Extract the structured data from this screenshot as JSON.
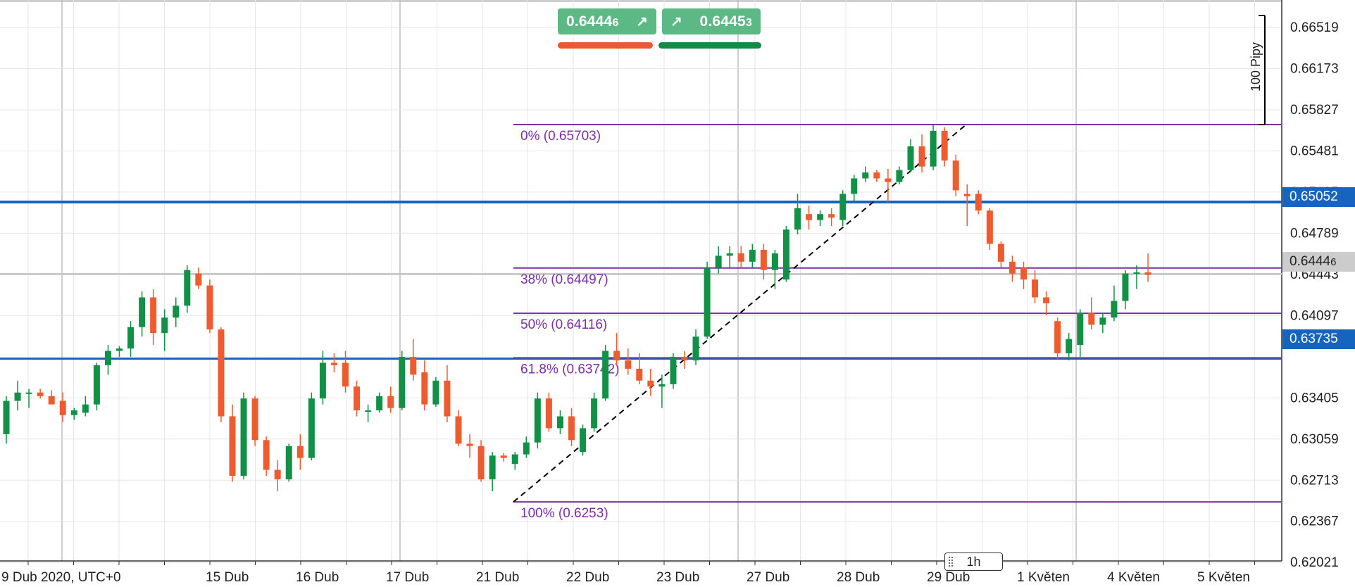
{
  "chart_data": {
    "type": "candlestick",
    "instrument_timeframe": "1h",
    "date_axis_start": "9 Dub 2020, UTC+0",
    "x_tick_labels": [
      "9 Dub 2020, UTC+0",
      "15 Dub",
      "16 Dub",
      "17 Dub",
      "21 Dub",
      "22 Dub",
      "23 Dub",
      "27 Dub",
      "28 Dub",
      "29 Dub",
      "1 Květen",
      "4 Květen",
      "5 Květen"
    ],
    "y_tick_labels": [
      "0.66519",
      "0.66173",
      "0.65827",
      "0.65481",
      "0.65135",
      "0.64789",
      "0.64443",
      "0.64097",
      "0.63405",
      "0.63059",
      "0.62713",
      "0.62367",
      "0.62021"
    ],
    "ylim": [
      0.6185,
      0.6675
    ],
    "candles": [
      {
        "o": 0.631,
        "h": 0.6342,
        "l": 0.6302,
        "c": 0.6338
      },
      {
        "o": 0.6338,
        "h": 0.6355,
        "l": 0.633,
        "c": 0.6345
      },
      {
        "o": 0.6345,
        "h": 0.6348,
        "l": 0.6332,
        "c": 0.6345
      },
      {
        "o": 0.6345,
        "h": 0.6348,
        "l": 0.634,
        "c": 0.6342
      },
      {
        "o": 0.6342,
        "h": 0.6347,
        "l": 0.6335,
        "c": 0.6335
      },
      {
        "o": 0.6338,
        "h": 0.6345,
        "l": 0.632,
        "c": 0.6326
      },
      {
        "o": 0.6326,
        "h": 0.6332,
        "l": 0.6322,
        "c": 0.633
      },
      {
        "o": 0.6328,
        "h": 0.6342,
        "l": 0.6325,
        "c": 0.6335
      },
      {
        "o": 0.6335,
        "h": 0.637,
        "l": 0.633,
        "c": 0.6368
      },
      {
        "o": 0.6368,
        "h": 0.6385,
        "l": 0.636,
        "c": 0.638
      },
      {
        "o": 0.638,
        "h": 0.6384,
        "l": 0.6375,
        "c": 0.6382
      },
      {
        "o": 0.6382,
        "h": 0.6405,
        "l": 0.6375,
        "c": 0.64
      },
      {
        "o": 0.64,
        "h": 0.643,
        "l": 0.6392,
        "c": 0.6425
      },
      {
        "o": 0.6425,
        "h": 0.6432,
        "l": 0.6385,
        "c": 0.6395
      },
      {
        "o": 0.6395,
        "h": 0.6415,
        "l": 0.638,
        "c": 0.6408
      },
      {
        "o": 0.6408,
        "h": 0.6425,
        "l": 0.64,
        "c": 0.6418
      },
      {
        "o": 0.6418,
        "h": 0.6452,
        "l": 0.6412,
        "c": 0.6448
      },
      {
        "o": 0.6445,
        "h": 0.645,
        "l": 0.6432,
        "c": 0.6435
      },
      {
        "o": 0.6435,
        "h": 0.644,
        "l": 0.6395,
        "c": 0.6398
      },
      {
        "o": 0.6398,
        "h": 0.64,
        "l": 0.632,
        "c": 0.6325
      },
      {
        "o": 0.6325,
        "h": 0.6335,
        "l": 0.627,
        "c": 0.6275
      },
      {
        "o": 0.6275,
        "h": 0.6345,
        "l": 0.6272,
        "c": 0.634
      },
      {
        "o": 0.634,
        "h": 0.6342,
        "l": 0.63,
        "c": 0.6305
      },
      {
        "o": 0.6305,
        "h": 0.6308,
        "l": 0.6275,
        "c": 0.628
      },
      {
        "o": 0.628,
        "h": 0.6288,
        "l": 0.6262,
        "c": 0.6272
      },
      {
        "o": 0.6272,
        "h": 0.6302,
        "l": 0.627,
        "c": 0.63
      },
      {
        "o": 0.63,
        "h": 0.631,
        "l": 0.628,
        "c": 0.629
      },
      {
        "o": 0.629,
        "h": 0.6345,
        "l": 0.6288,
        "c": 0.634
      },
      {
        "o": 0.634,
        "h": 0.638,
        "l": 0.6335,
        "c": 0.637
      },
      {
        "o": 0.637,
        "h": 0.6378,
        "l": 0.6362,
        "c": 0.6368
      },
      {
        "o": 0.637,
        "h": 0.638,
        "l": 0.6345,
        "c": 0.635
      },
      {
        "o": 0.635,
        "h": 0.6355,
        "l": 0.6325,
        "c": 0.633
      },
      {
        "o": 0.633,
        "h": 0.6335,
        "l": 0.632,
        "c": 0.633
      },
      {
        "o": 0.633,
        "h": 0.6345,
        "l": 0.6328,
        "c": 0.6342
      },
      {
        "o": 0.6342,
        "h": 0.635,
        "l": 0.6328,
        "c": 0.6332
      },
      {
        "o": 0.6332,
        "h": 0.638,
        "l": 0.633,
        "c": 0.6375
      },
      {
        "o": 0.6375,
        "h": 0.639,
        "l": 0.6355,
        "c": 0.636
      },
      {
        "o": 0.6362,
        "h": 0.6372,
        "l": 0.633,
        "c": 0.6335
      },
      {
        "o": 0.6335,
        "h": 0.6358,
        "l": 0.6333,
        "c": 0.6355
      },
      {
        "o": 0.6355,
        "h": 0.6368,
        "l": 0.632,
        "c": 0.6325
      },
      {
        "o": 0.6325,
        "h": 0.633,
        "l": 0.63,
        "c": 0.6302
      },
      {
        "o": 0.6302,
        "h": 0.631,
        "l": 0.629,
        "c": 0.63
      },
      {
        "o": 0.63,
        "h": 0.6305,
        "l": 0.627,
        "c": 0.6272
      },
      {
        "o": 0.6272,
        "h": 0.6295,
        "l": 0.6262,
        "c": 0.6292
      },
      {
        "o": 0.6292,
        "h": 0.6294,
        "l": 0.6287,
        "c": 0.629
      },
      {
        "o": 0.6285,
        "h": 0.6295,
        "l": 0.628,
        "c": 0.6293
      },
      {
        "o": 0.6293,
        "h": 0.6308,
        "l": 0.629,
        "c": 0.6303
      },
      {
        "o": 0.6303,
        "h": 0.6345,
        "l": 0.6298,
        "c": 0.634
      },
      {
        "o": 0.634,
        "h": 0.6345,
        "l": 0.6312,
        "c": 0.6315
      },
      {
        "o": 0.6315,
        "h": 0.633,
        "l": 0.631,
        "c": 0.6325
      },
      {
        "o": 0.6325,
        "h": 0.6332,
        "l": 0.63,
        "c": 0.6305
      },
      {
        "o": 0.6295,
        "h": 0.6318,
        "l": 0.6292,
        "c": 0.6315
      },
      {
        "o": 0.6315,
        "h": 0.6345,
        "l": 0.6312,
        "c": 0.634
      },
      {
        "o": 0.634,
        "h": 0.6385,
        "l": 0.6338,
        "c": 0.638
      },
      {
        "o": 0.638,
        "h": 0.6395,
        "l": 0.6368,
        "c": 0.6372
      },
      {
        "o": 0.6372,
        "h": 0.6382,
        "l": 0.636,
        "c": 0.6365
      },
      {
        "o": 0.6365,
        "h": 0.6378,
        "l": 0.6352,
        "c": 0.6355
      },
      {
        "o": 0.6355,
        "h": 0.6365,
        "l": 0.6342,
        "c": 0.635
      },
      {
        "o": 0.635,
        "h": 0.636,
        "l": 0.6332,
        "c": 0.6352
      },
      {
        "o": 0.6352,
        "h": 0.6378,
        "l": 0.6348,
        "c": 0.6375
      },
      {
        "o": 0.6375,
        "h": 0.638,
        "l": 0.6365,
        "c": 0.6372
      },
      {
        "o": 0.6372,
        "h": 0.6398,
        "l": 0.6368,
        "c": 0.6392
      },
      {
        "o": 0.6392,
        "h": 0.6455,
        "l": 0.639,
        "c": 0.645
      },
      {
        "o": 0.645,
        "h": 0.6468,
        "l": 0.6445,
        "c": 0.646
      },
      {
        "o": 0.646,
        "h": 0.6468,
        "l": 0.645,
        "c": 0.6462
      },
      {
        "o": 0.6462,
        "h": 0.6468,
        "l": 0.645,
        "c": 0.6455
      },
      {
        "o": 0.6455,
        "h": 0.647,
        "l": 0.645,
        "c": 0.6465
      },
      {
        "o": 0.6465,
        "h": 0.647,
        "l": 0.644,
        "c": 0.6448
      },
      {
        "o": 0.6448,
        "h": 0.6465,
        "l": 0.6432,
        "c": 0.6462
      },
      {
        "o": 0.644,
        "h": 0.6485,
        "l": 0.6438,
        "c": 0.6482
      },
      {
        "o": 0.6482,
        "h": 0.6512,
        "l": 0.6478,
        "c": 0.65
      },
      {
        "o": 0.6495,
        "h": 0.6502,
        "l": 0.6482,
        "c": 0.649
      },
      {
        "o": 0.649,
        "h": 0.6498,
        "l": 0.6485,
        "c": 0.6495
      },
      {
        "o": 0.6495,
        "h": 0.65,
        "l": 0.6485,
        "c": 0.6492
      },
      {
        "o": 0.649,
        "h": 0.6515,
        "l": 0.6485,
        "c": 0.6512
      },
      {
        "o": 0.6512,
        "h": 0.6528,
        "l": 0.6505,
        "c": 0.6525
      },
      {
        "o": 0.6525,
        "h": 0.6535,
        "l": 0.6522,
        "c": 0.653
      },
      {
        "o": 0.653,
        "h": 0.6532,
        "l": 0.6522,
        "c": 0.6525
      },
      {
        "o": 0.6525,
        "h": 0.6533,
        "l": 0.6505,
        "c": 0.6522
      },
      {
        "o": 0.6522,
        "h": 0.6535,
        "l": 0.652,
        "c": 0.6532
      },
      {
        "o": 0.6532,
        "h": 0.6558,
        "l": 0.653,
        "c": 0.6552
      },
      {
        "o": 0.6552,
        "h": 0.6562,
        "l": 0.653,
        "c": 0.6535
      },
      {
        "o": 0.6535,
        "h": 0.657,
        "l": 0.6532,
        "c": 0.6565
      },
      {
        "o": 0.6565,
        "h": 0.6568,
        "l": 0.6535,
        "c": 0.654
      },
      {
        "o": 0.654,
        "h": 0.6545,
        "l": 0.651,
        "c": 0.6515
      },
      {
        "o": 0.6512,
        "h": 0.652,
        "l": 0.6485,
        "c": 0.651
      },
      {
        "o": 0.6512,
        "h": 0.6515,
        "l": 0.6495,
        "c": 0.6498
      },
      {
        "o": 0.6498,
        "h": 0.65,
        "l": 0.6465,
        "c": 0.647
      },
      {
        "o": 0.647,
        "h": 0.6472,
        "l": 0.645,
        "c": 0.6455
      },
      {
        "o": 0.6455,
        "h": 0.646,
        "l": 0.6438,
        "c": 0.6445
      },
      {
        "o": 0.645,
        "h": 0.6455,
        "l": 0.6432,
        "c": 0.644
      },
      {
        "o": 0.644,
        "h": 0.6448,
        "l": 0.642,
        "c": 0.6425
      },
      {
        "o": 0.6425,
        "h": 0.643,
        "l": 0.641,
        "c": 0.642
      },
      {
        "o": 0.6405,
        "h": 0.6408,
        "l": 0.6373,
        "c": 0.6378
      },
      {
        "o": 0.6378,
        "h": 0.6395,
        "l": 0.6372,
        "c": 0.639
      },
      {
        "o": 0.6385,
        "h": 0.6415,
        "l": 0.6375,
        "c": 0.6412
      },
      {
        "o": 0.6412,
        "h": 0.6425,
        "l": 0.6398,
        "c": 0.6402
      },
      {
        "o": 0.6402,
        "h": 0.6412,
        "l": 0.6395,
        "c": 0.6408
      },
      {
        "o": 0.6408,
        "h": 0.6435,
        "l": 0.6405,
        "c": 0.6422
      },
      {
        "o": 0.6422,
        "h": 0.6448,
        "l": 0.6415,
        "c": 0.6445
      },
      {
        "o": 0.6445,
        "h": 0.6452,
        "l": 0.6432,
        "c": 0.6446
      },
      {
        "o": 0.6446,
        "h": 0.6462,
        "l": 0.6438,
        "c": 0.6444
      }
    ],
    "fibonacci": {
      "from": 0.6253,
      "to": 0.65703,
      "levels": [
        {
          "label": "0% (0.65703)",
          "price": 0.65703
        },
        {
          "label": "38% (0.64497)",
          "price": 0.64497
        },
        {
          "label": "50% (0.64116)",
          "price": 0.64116
        },
        {
          "label": "61.8% (0.63742)",
          "price": 0.63742
        },
        {
          "label": "100% (0.6253)",
          "price": 0.6253
        }
      ]
    },
    "horizontal_lines": [
      0.65052,
      0.63735
    ],
    "current_price": 0.64446,
    "pip_ruler_label": "100 Pipy"
  },
  "price_tags": [
    {
      "value": "0.65052",
      "color": "#1565c0"
    },
    {
      "value": "0.63735",
      "color": "#1565c0"
    },
    {
      "value_main": "0.6444",
      "value_small": "6",
      "color": "#cccccc",
      "text_color": "#222222"
    }
  ],
  "trade_ticket": {
    "sell_main": "0.6444",
    "sell_small": "6",
    "buy_main": "0.6445",
    "buy_small": "3",
    "sell_icon": "arrow-up-right-icon",
    "buy_icon": "arrow-up-right-icon",
    "sell_bar_color": "#e85a32",
    "buy_bar_color": "#138a45",
    "ticket_color": "#5cb985"
  },
  "timeframe_label": "1h",
  "colors": {
    "up": "#119146",
    "down": "#ee5b2f",
    "fib": "#7b2fa5",
    "hline": "#1565c0",
    "grid": "#e6e6e6"
  }
}
